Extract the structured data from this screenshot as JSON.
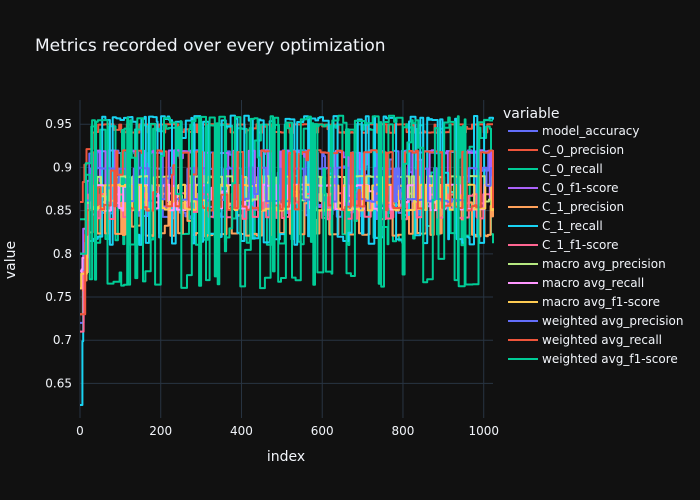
{
  "chart_data": {
    "type": "line",
    "title": "Metrics recorded over every optimization",
    "xlabel": "index",
    "ylabel": "value",
    "legend_title": "variable",
    "legend_position": "right",
    "grid": true,
    "xlim": [
      0,
      1023
    ],
    "ylim": [
      0.61,
      0.978
    ],
    "xticks": [
      0,
      200,
      400,
      600,
      800,
      1000
    ],
    "yticks": [
      0.65,
      0.7,
      0.75,
      0.8,
      0.85,
      0.9,
      0.95
    ],
    "ytick_labels": [
      "0.65",
      "0.7",
      "0.75",
      "0.8",
      "0.85",
      "0.9",
      "0.95"
    ],
    "series": [
      {
        "name": "model_accuracy",
        "color": "#636efa",
        "low": 0.84,
        "high": 0.92,
        "start": 0.72
      },
      {
        "name": "C_0_precision",
        "color": "#ef553b",
        "low": 0.94,
        "high": 0.95,
        "start": 0.86
      },
      {
        "name": "C_0_recall",
        "color": "#00cc96",
        "low": 0.81,
        "high": 0.95,
        "start": 0.84
      },
      {
        "name": "C_0_f1-score",
        "color": "#ab63fa",
        "low": 0.85,
        "high": 0.92,
        "start": 0.78
      },
      {
        "name": "C_1_precision",
        "color": "#ffa15a",
        "low": 0.82,
        "high": 0.86,
        "start": 0.73
      },
      {
        "name": "C_1_recall",
        "color": "#19d3f3",
        "low": 0.81,
        "high": 0.96,
        "start": 0.625
      },
      {
        "name": "C_1_f1-score",
        "color": "#ff6692",
        "low": 0.84,
        "high": 0.87,
        "start": 0.71
      },
      {
        "name": "macro avg_precision",
        "color": "#b6e880",
        "low": 0.86,
        "high": 0.89,
        "start": 0.8
      },
      {
        "name": "macro avg_recall",
        "color": "#ff97ff",
        "low": 0.85,
        "high": 0.88,
        "start": 0.76
      },
      {
        "name": "macro avg_f1-score",
        "color": "#fecb52",
        "low": 0.85,
        "high": 0.88,
        "start": 0.76
      },
      {
        "name": "weighted avg_precision",
        "color": "#636efa",
        "low": 0.86,
        "high": 0.9,
        "start": 0.8
      },
      {
        "name": "weighted avg_recall",
        "color": "#ef553b",
        "low": 0.85,
        "high": 0.92,
        "start": 0.73
      },
      {
        "name": "weighted avg_f1-score",
        "color": "#00cc96",
        "low": 0.76,
        "high": 0.96,
        "start": 0.8
      }
    ]
  }
}
